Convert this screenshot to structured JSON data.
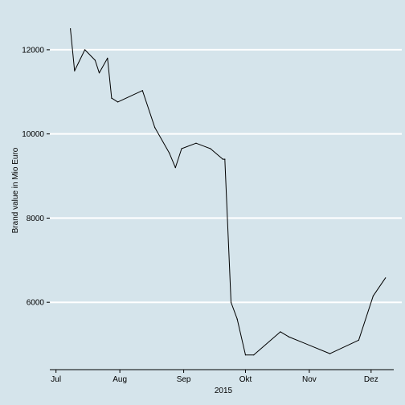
{
  "chart_data": {
    "type": "line",
    "title": "",
    "xlabel": "2015",
    "ylabel": "Brand value in Mio Euro",
    "grid": "horizontal major lines (white)",
    "legend": "none",
    "background_color": "#d5e4eb",
    "gridline_color": "#ffffff",
    "line_color": "#000000",
    "xlim": [
      "2015-06-28",
      "2015-12-12"
    ],
    "ylim": [
      4400,
      12800
    ],
    "x_ticks": [
      {
        "date": "2015-07-01",
        "label": "Jul"
      },
      {
        "date": "2015-08-01",
        "label": "Aug"
      },
      {
        "date": "2015-09-01",
        "label": "Sep"
      },
      {
        "date": "2015-10-01",
        "label": "Okt"
      },
      {
        "date": "2015-11-01",
        "label": "Nov"
      },
      {
        "date": "2015-12-01",
        "label": "Dez"
      }
    ],
    "y_ticks": [
      6000,
      8000,
      10000,
      12000
    ],
    "series": [
      {
        "points": [
          {
            "x": "2015-07-08",
            "y": 12500
          },
          {
            "x": "2015-07-10",
            "y": 11500
          },
          {
            "x": "2015-07-15",
            "y": 12000
          },
          {
            "x": "2015-07-20",
            "y": 11750
          },
          {
            "x": "2015-07-22",
            "y": 11450
          },
          {
            "x": "2015-07-26",
            "y": 11800
          },
          {
            "x": "2015-07-28",
            "y": 10850
          },
          {
            "x": "2015-07-31",
            "y": 10760
          },
          {
            "x": "2015-08-12",
            "y": 11030
          },
          {
            "x": "2015-08-18",
            "y": 10150
          },
          {
            "x": "2015-08-25",
            "y": 9550
          },
          {
            "x": "2015-08-28",
            "y": 9200
          },
          {
            "x": "2015-08-31",
            "y": 9650
          },
          {
            "x": "2015-09-07",
            "y": 9780
          },
          {
            "x": "2015-09-14",
            "y": 9650
          },
          {
            "x": "2015-09-20",
            "y": 9400
          },
          {
            "x": "2015-09-21",
            "y": 9400
          },
          {
            "x": "2015-09-24",
            "y": 6000
          },
          {
            "x": "2015-09-27",
            "y": 5600
          },
          {
            "x": "2015-10-01",
            "y": 4750
          },
          {
            "x": "2015-10-05",
            "y": 4750
          },
          {
            "x": "2015-10-18",
            "y": 5300
          },
          {
            "x": "2015-10-22",
            "y": 5180
          },
          {
            "x": "2015-11-11",
            "y": 4780
          },
          {
            "x": "2015-11-25",
            "y": 5100
          },
          {
            "x": "2015-12-02",
            "y": 6150
          },
          {
            "x": "2015-12-08",
            "y": 6580
          }
        ]
      }
    ]
  }
}
